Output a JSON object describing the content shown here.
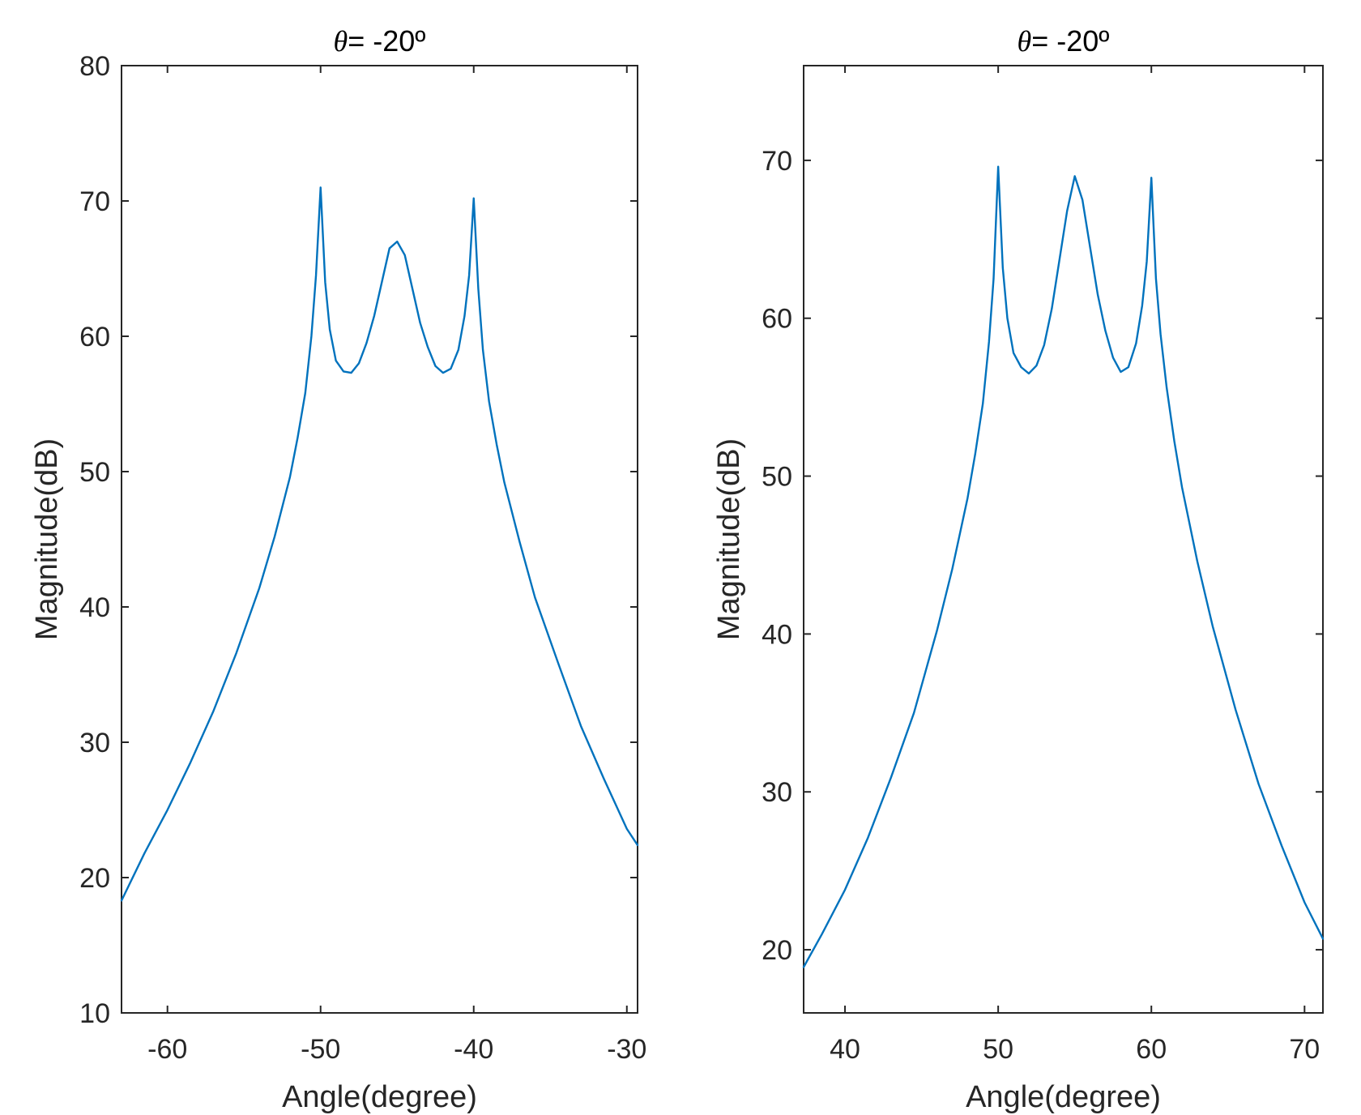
{
  "colors": {
    "line": "#0072BD",
    "axes": "#262626",
    "background": "#ffffff"
  },
  "chart_data": [
    {
      "type": "line",
      "title": "θ= -20º",
      "title_symbol": "θ",
      "title_text": "= -20º",
      "xlabel": "Angle(degree)",
      "ylabel": "Magnitude(dB)",
      "xlim": [
        -63,
        -29.3
      ],
      "ylim": [
        10,
        80
      ],
      "xticks": [
        -60,
        -50,
        -40,
        -30
      ],
      "xtick_labels": [
        "-60",
        "-50",
        "-40",
        "-30"
      ],
      "yticks": [
        10,
        20,
        30,
        40,
        50,
        60,
        70,
        80
      ],
      "ytick_labels": [
        "10",
        "20",
        "30",
        "40",
        "50",
        "60",
        "70",
        "80"
      ],
      "grid": false,
      "series": [
        {
          "name": "spectrum",
          "x": [
            -63,
            -61.5,
            -60,
            -58.5,
            -57,
            -55.5,
            -54,
            -53,
            -52,
            -51.5,
            -51,
            -50.6,
            -50.3,
            -50,
            -49.7,
            -49.4,
            -49,
            -48.5,
            -48,
            -47.5,
            -47,
            -46.5,
            -46,
            -45.5,
            -45,
            -44.5,
            -44,
            -43.5,
            -43,
            -42.5,
            -42,
            -41.5,
            -41,
            -40.6,
            -40.3,
            -40,
            -39.7,
            -39.4,
            -39,
            -38.5,
            -38,
            -37,
            -36,
            -34.5,
            -33,
            -31.5,
            -30,
            -29.3
          ],
          "y": [
            18.3,
            21.8,
            25.0,
            28.5,
            32.3,
            36.6,
            41.4,
            45.2,
            49.6,
            52.5,
            55.8,
            60.0,
            64.5,
            71.0,
            64.0,
            60.5,
            58.2,
            57.4,
            57.3,
            58.0,
            59.5,
            61.5,
            64.0,
            66.5,
            67.0,
            66.0,
            63.5,
            61.0,
            59.2,
            57.8,
            57.3,
            57.6,
            59.0,
            61.5,
            64.5,
            70.2,
            63.5,
            59.0,
            55.2,
            52.0,
            49.2,
            44.8,
            40.7,
            35.9,
            31.2,
            27.3,
            23.6,
            22.4
          ]
        }
      ]
    },
    {
      "type": "line",
      "title": "θ= -20º",
      "title_symbol": "θ",
      "title_text": "= -20º",
      "xlabel": "Angle(degree)",
      "ylabel": "Magnitude(dB)",
      "xlim": [
        37.3,
        71.2
      ],
      "ylim": [
        16,
        76
      ],
      "xticks": [
        40,
        50,
        60,
        70
      ],
      "xtick_labels": [
        "40",
        "50",
        "60",
        "70"
      ],
      "yticks": [
        20,
        30,
        40,
        50,
        60,
        70
      ],
      "ytick_labels": [
        "20",
        "30",
        "40",
        "50",
        "60",
        "70"
      ],
      "grid": false,
      "series": [
        {
          "name": "spectrum",
          "x": [
            37.3,
            38.5,
            40,
            41.5,
            43,
            44.5,
            46,
            47,
            48,
            48.5,
            49,
            49.4,
            49.7,
            50,
            50.3,
            50.6,
            51,
            51.5,
            52,
            52.5,
            53,
            53.5,
            54,
            54.5,
            55,
            55.5,
            56,
            56.5,
            57,
            57.5,
            58,
            58.5,
            59,
            59.4,
            59.7,
            60,
            60.3,
            60.6,
            61,
            61.5,
            62,
            63,
            64,
            65.5,
            67,
            68.5,
            70,
            71.2
          ],
          "y": [
            18.9,
            21.0,
            23.8,
            27.1,
            30.9,
            35.0,
            40.2,
            44.1,
            48.6,
            51.4,
            54.6,
            58.5,
            62.5,
            69.6,
            63.2,
            60.0,
            57.8,
            56.9,
            56.5,
            57.0,
            58.3,
            60.6,
            63.7,
            66.8,
            69.0,
            67.5,
            64.5,
            61.5,
            59.2,
            57.5,
            56.6,
            56.9,
            58.4,
            60.8,
            63.6,
            68.9,
            62.5,
            59.0,
            55.6,
            52.2,
            49.3,
            44.6,
            40.5,
            35.2,
            30.5,
            26.6,
            23.0,
            20.7
          ]
        }
      ]
    }
  ]
}
